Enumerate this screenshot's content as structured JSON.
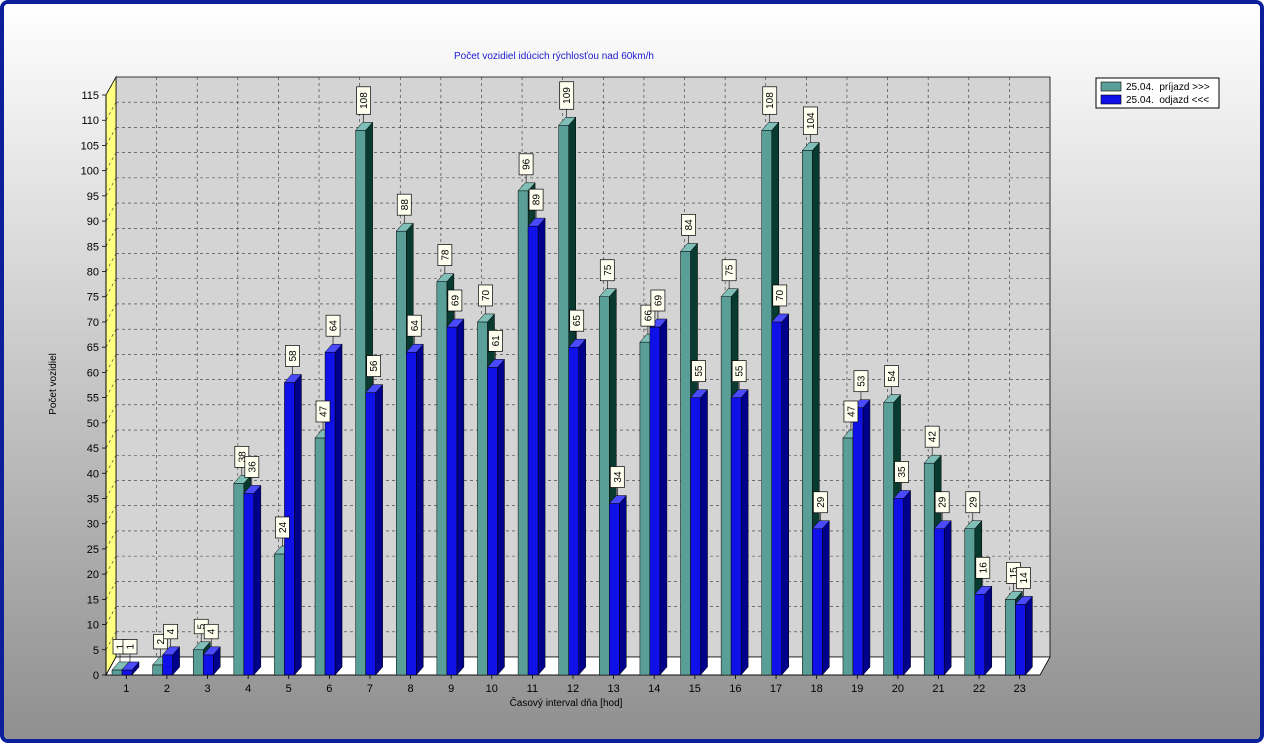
{
  "chart_data": {
    "type": "bar",
    "title": "Počet vozidiel idúcich rýchlosťou nad 60km/h",
    "xlabel": "Časový interval dňa [hod]",
    "ylabel": "Počet vozidiel",
    "ylim": [
      0,
      115
    ],
    "yticks": [
      "0",
      "5",
      "10",
      "15",
      "20",
      "25",
      "30",
      "35",
      "40",
      "45",
      "50",
      "55",
      "60",
      "65",
      "70",
      "75",
      "80",
      "85",
      "90",
      "95",
      "100",
      "105",
      "110",
      "115"
    ],
    "categories": [
      "1",
      "2",
      "3",
      "4",
      "5",
      "6",
      "7",
      "8",
      "9",
      "10",
      "11",
      "12",
      "13",
      "14",
      "15",
      "16",
      "17",
      "18",
      "19",
      "20",
      "21",
      "22",
      "23"
    ],
    "series": [
      {
        "name": "25.04.  príjazd >>>",
        "color": "#5a9e98",
        "values": [
          1,
          2,
          5,
          38,
          24,
          47,
          108,
          88,
          78,
          70,
          96,
          109,
          75,
          66,
          84,
          75,
          108,
          104,
          47,
          54,
          42,
          29,
          15
        ]
      },
      {
        "name": "25.04.  odjazd <<<",
        "color": "#1010e8",
        "values": [
          1,
          4,
          4,
          36,
          58,
          64,
          56,
          64,
          69,
          61,
          89,
          65,
          34,
          69,
          55,
          55,
          70,
          29,
          53,
          35,
          29,
          16,
          14
        ]
      }
    ],
    "grid": true,
    "legend_position": "top-right"
  }
}
